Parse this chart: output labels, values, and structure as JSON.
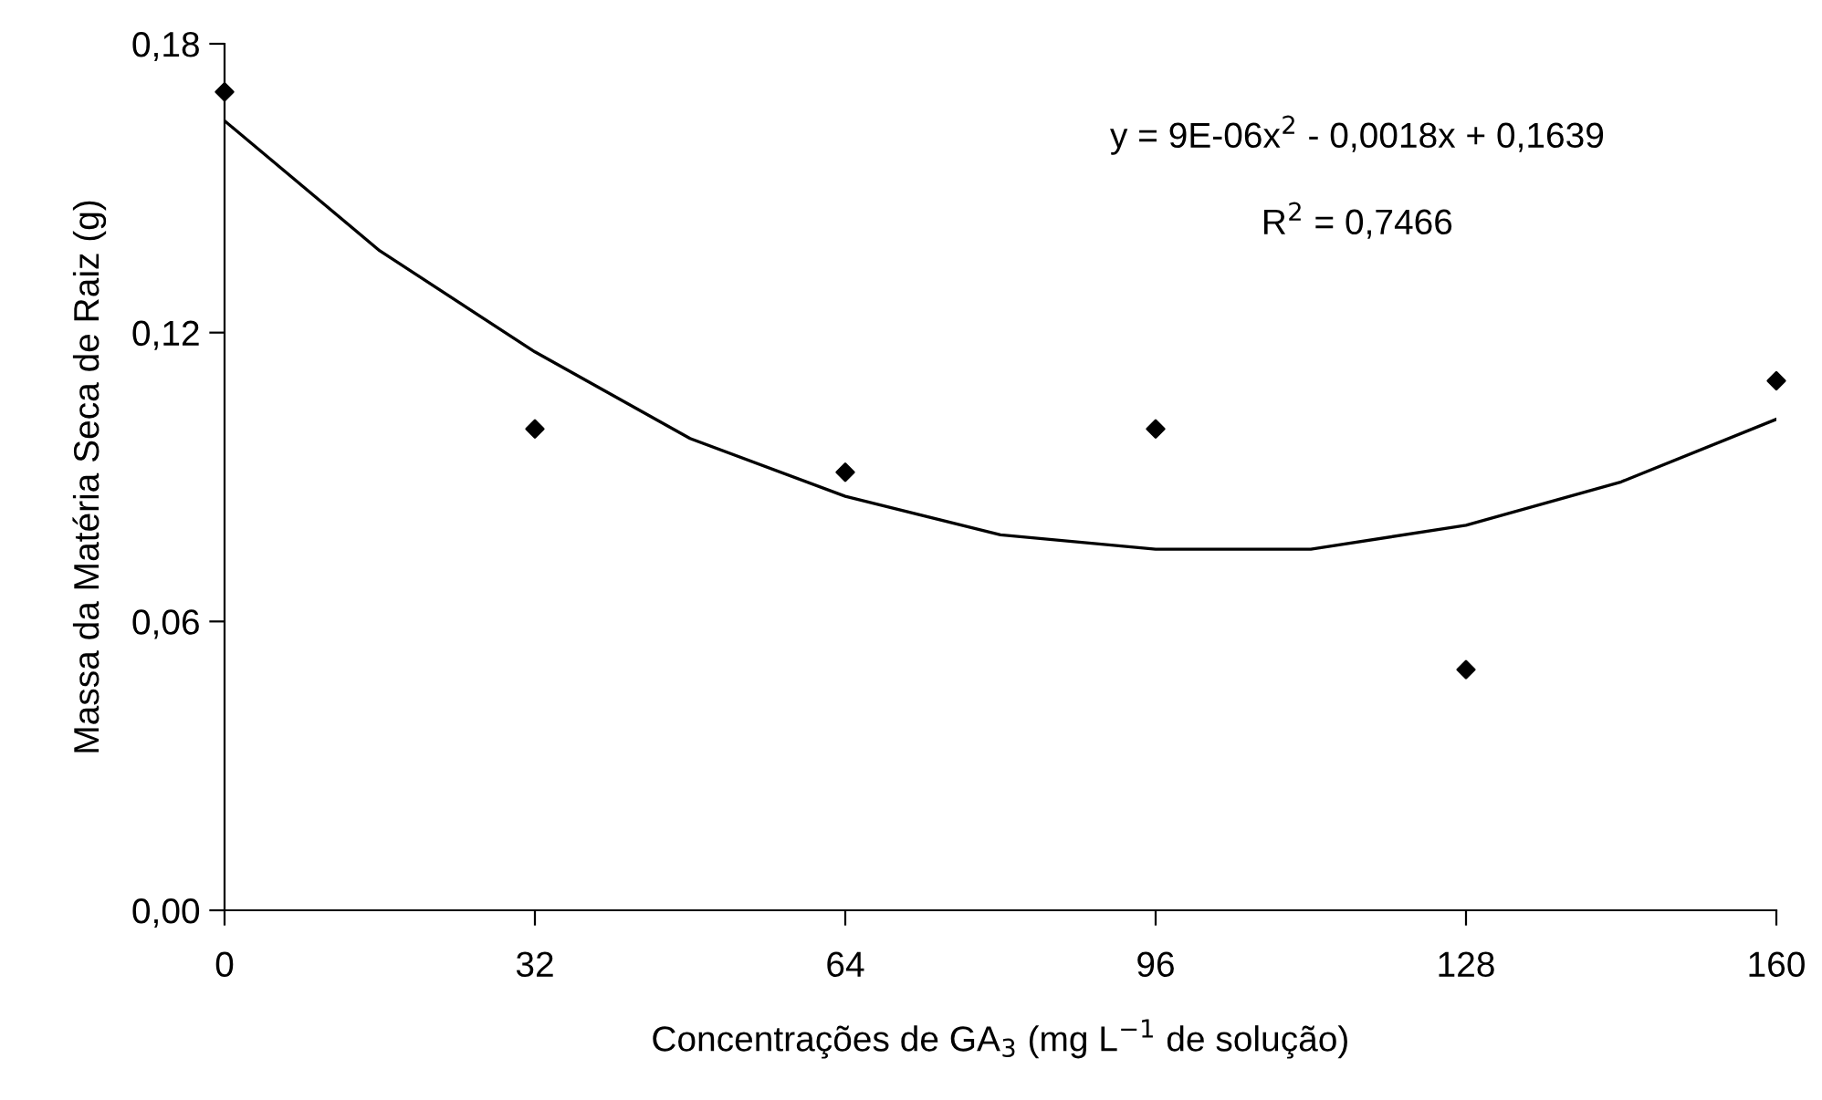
{
  "chart_data": {
    "type": "scatter",
    "xlabel": "Concentrações de GA$_{3}$ (mg L$^{−1}$ de solução)",
    "ylabel": "Massa da Matéria Seca de Raiz (g)",
    "x": [
      0,
      32,
      64,
      96,
      128,
      160
    ],
    "series": [
      {
        "color": "#000000",
        "marker": "diamond",
        "values": [
          0.17,
          0.1,
          0.091,
          0.1,
          0.05,
          0.11
        ]
      },
      {
        "type": "line",
        "color": "#000000",
        "marker": "none",
        "line_style": "solid",
        "x": [
          0,
          16,
          32,
          48,
          64,
          80,
          96,
          112,
          128,
          144,
          160
        ],
        "values": [
          0.164,
          0.137,
          0.116,
          0.098,
          0.086,
          0.078,
          0.075,
          0.075,
          0.08,
          0.089,
          0.102
        ]
      }
    ],
    "annotations": [
      {
        "text": "y = 9E-06x$^{2}$ - 0,0018x + 0,1639"
      },
      {
        "text": "R$^{2}$ = 0,7466"
      }
    ],
    "xlim": [
      0,
      160
    ],
    "xticks": [
      0,
      32,
      64,
      96,
      128,
      160
    ],
    "ylim": [
      0,
      0.18
    ],
    "yticks": [
      {
        "value": 0,
        "label": "0,00"
      },
      {
        "value": 0.06,
        "label": "0,06"
      },
      {
        "value": 0.12,
        "label": "0,12"
      },
      {
        "value": 0.18,
        "label": "0,18"
      }
    ],
    "grid": false,
    "legend": false
  }
}
